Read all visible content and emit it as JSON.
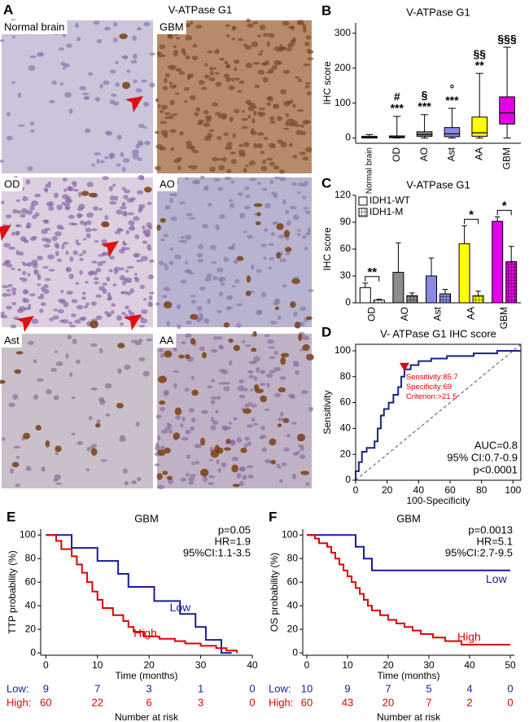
{
  "panel_a": {
    "panel": "A",
    "title": "V-ATPase G1",
    "images": [
      "Normal brain",
      "GBM",
      "OD",
      "AO",
      "Ast",
      "AA"
    ]
  },
  "chart_data": [
    {
      "panel": "B",
      "type": "box",
      "title": "V-ATPase G1",
      "ylabel": "IHC score",
      "categories": [
        "Normal brain",
        "OD",
        "AO",
        "Ast",
        "AA",
        "GBM"
      ],
      "colors": [
        "#ffffff",
        "#ffffff",
        "#8c8c8c",
        "#8a8ae6",
        "#ffff00",
        "#e600e6"
      ],
      "min": [
        0,
        0,
        0,
        0,
        0,
        0
      ],
      "q1": [
        0,
        1,
        5,
        4,
        5,
        40
      ],
      "median": [
        2,
        3,
        10,
        12,
        15,
        72
      ],
      "q3": [
        5,
        6,
        18,
        30,
        60,
        118
      ],
      "max": [
        10,
        62,
        67,
        85,
        185,
        260
      ],
      "annotations": [
        null,
        [
          "#",
          "***"
        ],
        [
          "§",
          "***"
        ],
        [
          "°",
          "***"
        ],
        [
          "§§",
          "**"
        ],
        [
          "§§§"
        ]
      ],
      "ylim": [
        -15,
        330
      ],
      "yticks": [
        0,
        100,
        200,
        300
      ]
    },
    {
      "panel": "C",
      "type": "bar",
      "title": "V-ATPase G1",
      "ylabel": "IHC score",
      "categories": [
        "OD",
        "AO",
        "Ast",
        "AA",
        "GBM"
      ],
      "colors": [
        "#ffffff",
        "#8c8c8c",
        "#8a8ae6",
        "#ffff00",
        "#e600e6"
      ],
      "series": [
        {
          "name": "IDH1-WT",
          "values": [
            17,
            34,
            30,
            66,
            91
          ],
          "errors": [
            5,
            33,
            20,
            20,
            5
          ],
          "pattern": "solid"
        },
        {
          "name": "IDH1-M",
          "values": [
            3,
            8,
            10,
            8,
            46
          ],
          "errors": [
            1,
            3,
            5,
            5,
            17
          ],
          "pattern": "grid"
        }
      ],
      "significance": [
        "**",
        null,
        null,
        "*",
        "*"
      ],
      "ylim": [
        0,
        120
      ],
      "yticks": [
        0,
        30,
        60,
        90,
        120
      ]
    },
    {
      "panel": "D",
      "type": "roc",
      "title": "V- ATPase G1 IHC score",
      "xlabel": "100-Specificity",
      "ylabel": "Sensitivity",
      "x": [
        0,
        0,
        2,
        2,
        4,
        4,
        7,
        7,
        12,
        12,
        14,
        14,
        16,
        16,
        18,
        18,
        21,
        21,
        24,
        24,
        27,
        27,
        29,
        29,
        31,
        31,
        35,
        35,
        40,
        40,
        48,
        48,
        58,
        58,
        75,
        75,
        90,
        90,
        105
      ],
      "y": [
        0,
        7,
        7,
        14,
        14,
        22,
        22,
        25,
        25,
        30,
        30,
        40,
        40,
        50,
        50,
        55,
        55,
        60,
        60,
        66,
        66,
        72,
        72,
        80,
        80,
        85.7,
        85.7,
        89,
        89,
        92,
        92,
        94,
        94,
        96,
        96,
        98,
        98,
        100,
        100
      ],
      "color": "#1a237e",
      "cutoff": {
        "x": 31,
        "y": 85.7,
        "color": "#e00000"
      },
      "cutoff_labels": [
        "Sensitivity:85.7",
        "Specificity:69",
        "Criterion:>21.5"
      ],
      "stats": [
        "AUC=0.8",
        "95% CI:0.7-0.9",
        "p<0.0001"
      ],
      "xlim": [
        0,
        105
      ],
      "ylim": [
        0,
        105
      ],
      "xticks": [
        0,
        20,
        40,
        60,
        80,
        100
      ],
      "yticks": [
        0,
        20,
        40,
        60,
        80,
        100
      ]
    },
    {
      "panel": "E",
      "type": "step",
      "title": "GBM",
      "xlabel": "Time (months)",
      "ylabel": "TTP probability (%)",
      "series": [
        {
          "name": "Low",
          "color": "#1a1a9e",
          "at_risk_label": "Low:",
          "at_risk": [
            9,
            7,
            3,
            1,
            0
          ],
          "x": [
            0,
            5,
            5,
            10,
            10,
            14,
            14,
            16,
            16,
            21,
            21,
            26,
            26,
            29,
            29,
            31,
            31,
            34,
            34,
            36
          ],
          "y": [
            100,
            100,
            89,
            89,
            78,
            78,
            67,
            67,
            56,
            56,
            44,
            44,
            33,
            33,
            22,
            22,
            11,
            11,
            0,
            0
          ]
        },
        {
          "name": "High",
          "color": "#e00000",
          "at_risk_label": "High:",
          "at_risk": [
            60,
            22,
            6,
            3,
            0
          ],
          "x": [
            0,
            2,
            2,
            3,
            3,
            5,
            5,
            6,
            6,
            7,
            7,
            8,
            8,
            9,
            9,
            10,
            10,
            11,
            11,
            13,
            13,
            15,
            15,
            16,
            16,
            17,
            17,
            19,
            19,
            22,
            22,
            25,
            25,
            27,
            27,
            30,
            30,
            33,
            33,
            35,
            35,
            37,
            37
          ],
          "y": [
            100,
            100,
            95,
            95,
            88,
            88,
            82,
            82,
            75,
            75,
            68,
            68,
            60,
            60,
            52,
            52,
            45,
            45,
            38,
            38,
            32,
            32,
            27,
            27,
            22,
            22,
            18,
            18,
            14,
            14,
            12,
            12,
            10,
            10,
            8,
            8,
            6,
            6,
            4,
            4,
            2,
            2,
            0
          ]
        }
      ],
      "stats": [
        "p=0.05",
        "HR=1.9",
        "95%CI:1.1-3.5"
      ],
      "risk_title": "Number at risk",
      "xlim": [
        -1,
        40
      ],
      "ylim": [
        -2,
        105
      ],
      "xticks": [
        0,
        10,
        20,
        30,
        40
      ],
      "yticks": [
        0,
        20,
        40,
        60,
        80,
        100
      ]
    },
    {
      "panel": "F",
      "type": "step",
      "title": "GBM",
      "xlabel": "Time (months)",
      "ylabel": "OS probability (%)",
      "series": [
        {
          "name": "Low",
          "color": "#1a1a9e",
          "at_risk_label": "Low:",
          "at_risk": [
            10,
            9,
            7,
            5,
            4,
            0
          ],
          "x": [
            0,
            12,
            12,
            14,
            14,
            16,
            16,
            50
          ],
          "y": [
            100,
            100,
            90,
            90,
            80,
            80,
            70,
            70
          ]
        },
        {
          "name": "High",
          "color": "#e00000",
          "at_risk_label": "High:",
          "at_risk": [
            60,
            43,
            20,
            7,
            2,
            0
          ],
          "x": [
            0,
            2,
            2,
            3,
            3,
            5,
            5,
            6,
            6,
            7,
            7,
            8,
            8,
            9,
            9,
            10,
            10,
            11,
            11,
            12,
            12,
            13,
            13,
            14,
            14,
            15,
            15,
            16,
            16,
            18,
            18,
            20,
            20,
            22,
            22,
            24,
            24,
            26,
            26,
            28,
            28,
            31,
            31,
            34,
            34,
            38,
            38,
            50
          ],
          "y": [
            100,
            100,
            97,
            97,
            93,
            93,
            90,
            90,
            85,
            85,
            80,
            80,
            75,
            75,
            70,
            70,
            65,
            65,
            60,
            60,
            55,
            55,
            50,
            50,
            45,
            45,
            40,
            40,
            36,
            36,
            32,
            32,
            28,
            28,
            25,
            25,
            22,
            22,
            19,
            19,
            16,
            16,
            13,
            13,
            10,
            10,
            7,
            7
          ]
        }
      ],
      "stats": [
        "p=0.0013",
        "HR=5.1",
        "95%CI:2.7-9.5"
      ],
      "risk_title": "Number at risk",
      "xlim": [
        -1,
        51
      ],
      "ylim": [
        -2,
        105
      ],
      "xticks": [
        0,
        10,
        20,
        30,
        40,
        50
      ],
      "yticks": [
        0,
        20,
        40,
        60,
        80,
        100
      ]
    }
  ]
}
